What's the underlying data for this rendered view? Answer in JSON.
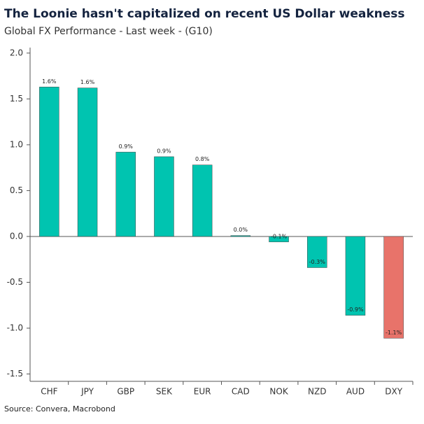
{
  "chart_data": {
    "type": "bar",
    "title": "The Loonie hasn't capitalized on recent US Dollar weakness",
    "subtitle": "Global FX Performance - Last week - (G10)",
    "source": "Source: Convera, Macrobond",
    "categories": [
      "CHF",
      "JPY",
      "GBP",
      "SEK",
      "EUR",
      "CAD",
      "NOK",
      "NZD",
      "AUD",
      "DXY"
    ],
    "values": [
      1.63,
      1.62,
      0.92,
      0.87,
      0.78,
      0.01,
      -0.06,
      -0.34,
      -0.86,
      -1.11
    ],
    "value_labels": [
      "1.6%",
      "1.6%",
      "0.9%",
      "0.9%",
      "0.8%",
      "0.0%",
      "-0.1%",
      "-0.3%",
      "-0.9%",
      "-1.1%"
    ],
    "colors": [
      "#00c4b0",
      "#00c4b0",
      "#00c4b0",
      "#00c4b0",
      "#00c4b0",
      "#00c4b0",
      "#00c4b0",
      "#00c4b0",
      "#00c4b0",
      "#e8736a"
    ],
    "ylim": [
      -1.58,
      2.06
    ],
    "yticks": [
      {
        "value": 2,
        "label": "2.0"
      },
      {
        "value": 1.5,
        "label": "1.5"
      },
      {
        "value": 1,
        "label": "1.0"
      },
      {
        "value": 0.5,
        "label": "0.5"
      },
      {
        "value": 0,
        "label": "0.0"
      },
      {
        "value": -0.5,
        "label": "-0.5"
      },
      {
        "value": -1,
        "label": "-1.0"
      },
      {
        "value": -1.5,
        "label": "-1.5"
      }
    ],
    "grid": false
  }
}
